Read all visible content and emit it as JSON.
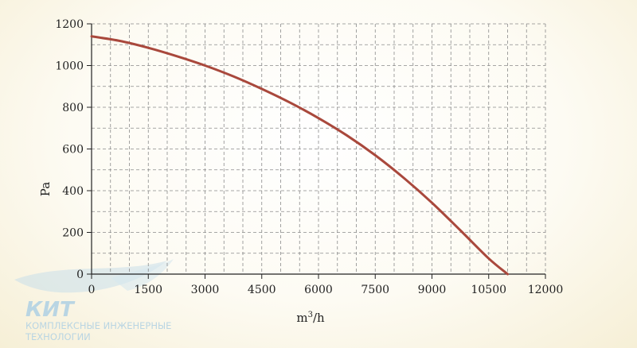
{
  "chart_data": {
    "type": "line",
    "xlabel": "m",
    "xlabel_sup": "3",
    "xlabel_tail": "/h",
    "ylabel": "Pa",
    "xlim": [
      0,
      12000
    ],
    "ylim": [
      0,
      1200
    ],
    "x_ticks": [
      0,
      1500,
      3000,
      4500,
      6000,
      7500,
      9000,
      10500,
      12000
    ],
    "y_ticks": [
      0,
      200,
      400,
      600,
      800,
      1000,
      1200
    ],
    "grid": true,
    "series": [
      {
        "color": "#a9483c",
        "x": [
          0,
          750,
          1500,
          2250,
          3000,
          3750,
          4500,
          5250,
          6000,
          6750,
          7500,
          8250,
          9000,
          9750,
          10500,
          11000
        ],
        "y": [
          1140,
          1118,
          1085,
          1045,
          1000,
          948,
          888,
          822,
          748,
          665,
          570,
          462,
          342,
          210,
          75,
          0
        ]
      }
    ]
  },
  "logo": {
    "name": "КИТ",
    "line1": "КОМПЛЕКСНЫЕ ИНЖЕНЕРНЫЕ",
    "line2": "ТЕХНОЛОГИИ"
  }
}
